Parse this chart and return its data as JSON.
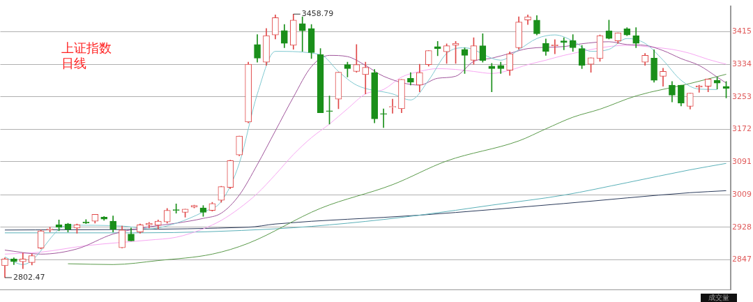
{
  "chart_data": {
    "type": "candlestick",
    "title": "上证指数",
    "subtitle": "日线",
    "categories": [
      null,
      null,
      null,
      null,
      null,
      null,
      null,
      null,
      null,
      null,
      null,
      null,
      null,
      null,
      null,
      null,
      null,
      null,
      null,
      null,
      null,
      null,
      null,
      null,
      null,
      null,
      null,
      null,
      null,
      null,
      null,
      null,
      null,
      null,
      null,
      null,
      null,
      null,
      null,
      null,
      null,
      null,
      null,
      null,
      null,
      null,
      null,
      null,
      null,
      null,
      null,
      null,
      null,
      null,
      null,
      null,
      null,
      null,
      null,
      null,
      null,
      null,
      null,
      null,
      null,
      null,
      null,
      null,
      null,
      null,
      null,
      null,
      null,
      null,
      null,
      null,
      null,
      null,
      null,
      null,
      null
    ],
    "ohlc": [
      [
        2832,
        2852,
        2802.47,
        2849
      ],
      [
        2849,
        2852,
        2835,
        2842
      ],
      [
        2842,
        2864,
        2825,
        2849
      ],
      [
        2840,
        2862,
        2834,
        2857
      ],
      [
        2876,
        2921,
        2874,
        2919
      ],
      [
        2921,
        2928,
        2916,
        2924
      ],
      [
        2934,
        2946,
        2919,
        2928
      ],
      [
        2936,
        2938,
        2916,
        2923
      ],
      [
        2926,
        2936,
        2913,
        2934
      ],
      [
        2941,
        2947,
        2937,
        2938
      ],
      [
        2943,
        2960,
        2938,
        2960
      ],
      [
        2953,
        2955,
        2945,
        2948
      ],
      [
        2943,
        2956,
        2916,
        2923
      ],
      [
        2877,
        2931,
        2876,
        2921
      ],
      [
        2911,
        2926,
        2894,
        2894
      ],
      [
        2916,
        2936,
        2913,
        2934
      ],
      [
        2934,
        2940,
        2926,
        2938
      ],
      [
        2933,
        2946,
        2924,
        2943
      ],
      [
        2941,
        2975,
        2938,
        2970
      ],
      [
        2971,
        2986,
        2963,
        2970
      ],
      [
        2965,
        2973,
        2953,
        2973
      ],
      [
        2978,
        2983,
        2976,
        2982
      ],
      [
        2976,
        2982,
        2955,
        2965
      ],
      [
        2970,
        2990,
        2968,
        2987
      ],
      [
        2995,
        3030,
        2990,
        3029
      ],
      [
        3027,
        3095,
        3024,
        3094
      ],
      [
        3108,
        3155,
        3106,
        3155
      ],
      [
        3190,
        3339,
        3188,
        3334
      ],
      [
        3383,
        3408,
        3339,
        3349
      ],
      [
        3339,
        3423,
        3331,
        3405
      ],
      [
        3407,
        3457,
        3397,
        3450
      ],
      [
        3418,
        3433,
        3375,
        3386
      ],
      [
        3381,
        3458.79,
        3371,
        3444
      ],
      [
        3435,
        3452,
        3366,
        3417
      ],
      [
        3423,
        3433,
        3348,
        3363
      ],
      [
        3358,
        3373,
        3213,
        3213
      ],
      [
        3218,
        3255,
        3185,
        3216
      ],
      [
        3247,
        3314,
        3223,
        3314
      ],
      [
        3333,
        3339,
        3302,
        3323
      ],
      [
        3316,
        3383,
        3314,
        3333
      ],
      [
        3308,
        3339,
        3260,
        3326
      ],
      [
        3313,
        3321,
        3188,
        3198
      ],
      [
        3211,
        3223,
        3176,
        3209
      ],
      [
        3227,
        3247,
        3212,
        3229
      ],
      [
        3223,
        3296,
        3213,
        3296
      ],
      [
        3299,
        3313,
        3282,
        3289
      ],
      [
        3282,
        3334,
        3265,
        3313
      ],
      [
        3333,
        3368,
        3329,
        3368
      ],
      [
        3378,
        3391,
        3355,
        3373
      ],
      [
        3365,
        3385,
        3336,
        3380
      ],
      [
        3381,
        3391,
        3336,
        3386
      ],
      [
        3371,
        3375,
        3311,
        3356
      ],
      [
        3344,
        3400,
        3334,
        3380
      ],
      [
        3380,
        3410,
        3339,
        3343
      ],
      [
        3329,
        3336,
        3265,
        3323
      ],
      [
        3331,
        3339,
        3311,
        3323
      ],
      [
        3319,
        3365,
        3306,
        3360
      ],
      [
        3375,
        3452,
        3371,
        3439
      ],
      [
        3444,
        3457,
        3433,
        3452
      ],
      [
        3444,
        3455,
        3407,
        3410
      ],
      [
        3386,
        3397,
        3356,
        3366
      ],
      [
        3380,
        3395,
        3360,
        3382
      ],
      [
        3392,
        3400,
        3370,
        3388
      ],
      [
        3393,
        3408,
        3366,
        3375
      ],
      [
        3373,
        3381,
        3323,
        3331
      ],
      [
        3334,
        3350,
        3314,
        3350
      ],
      [
        3348,
        3407,
        3341,
        3405
      ],
      [
        3417,
        3444,
        3397,
        3398
      ],
      [
        3392,
        3412,
        3386,
        3412
      ],
      [
        3422,
        3425,
        3405,
        3407
      ],
      [
        3405,
        3425,
        3375,
        3386
      ],
      [
        3339,
        3361,
        3331,
        3356
      ],
      [
        3349,
        3370,
        3289,
        3294
      ],
      [
        3304,
        3324,
        3279,
        3316
      ],
      [
        3282,
        3291,
        3240,
        3257
      ],
      [
        3282,
        3282,
        3230,
        3237
      ],
      [
        3229,
        3262,
        3222,
        3262
      ],
      [
        3277,
        3282,
        3264,
        3280
      ],
      [
        3279,
        3297,
        3265,
        3297
      ],
      [
        3294,
        3302,
        3272,
        3287
      ],
      [
        3279,
        3291,
        3250,
        3274
      ]
    ],
    "series": [
      {
        "type": "line",
        "color": "#7ec8d0",
        "values": [
          2854,
          null,
          2835,
          null,
          null,
          null,
          null,
          2933,
          null,
          null,
          null,
          null,
          null,
          2931,
          null,
          null,
          2924,
          null,
          null,
          2938,
          null,
          null,
          2966,
          null,
          2992,
          null,
          3087,
          null,
          3260,
          null,
          3366,
          null,
          null,
          null,
          null,
          3358,
          null,
          3316,
          null,
          3282,
          null,
          null,
          null,
          3260,
          null,
          3245,
          null,
          3294,
          null,
          3361,
          null,
          3375,
          null,
          null,
          null,
          3344,
          null,
          3370,
          null,
          3398,
          null,
          3407,
          null,
          3392,
          null,
          3366,
          null,
          3371,
          null,
          3398,
          null,
          3386,
          null,
          3344,
          null,
          3294,
          null,
          3272,
          null,
          3271,
          null
        ]
      },
      {
        "type": "line",
        "color": "#a0569c",
        "values": [
          2871,
          null,
          null,
          null,
          2861,
          null,
          null,
          null,
          2874,
          null,
          null,
          null,
          2911,
          null,
          null,
          null,
          2929,
          null,
          null,
          2938,
          null,
          null,
          2950,
          null,
          2963,
          null,
          3008,
          null,
          3084,
          null,
          3168,
          null,
          3252,
          null,
          3328,
          null,
          3356,
          null,
          3353,
          null,
          3331,
          null,
          3304,
          null,
          null,
          null,
          3282,
          null,
          3299,
          null,
          3304,
          null,
          3341,
          null,
          3349,
          null,
          3361,
          null,
          3373,
          null,
          null,
          null,
          3378,
          null,
          3385,
          null,
          null,
          3390,
          null,
          3383,
          null,
          3381,
          null,
          3368,
          null,
          3348,
          null,
          3331,
          null,
          3302,
          3287
        ]
      },
      {
        "type": "line",
        "color": "#f7a6f2",
        "values": [
          2861,
          null,
          null,
          null,
          2866,
          null,
          null,
          null,
          null,
          2882,
          null,
          null,
          null,
          null,
          null,
          null,
          2896,
          null,
          null,
          2903,
          null,
          null,
          2924,
          null,
          2945,
          null,
          2975,
          null,
          3012,
          null,
          3059,
          null,
          3109,
          null,
          3151,
          null,
          3185,
          null,
          3223,
          null,
          3260,
          null,
          3271,
          null,
          3302,
          null,
          3316,
          null,
          3323,
          null,
          3321,
          null,
          3316,
          null,
          3311,
          null,
          3319,
          null,
          3333,
          null,
          3344,
          null,
          3356,
          null,
          null,
          null,
          null,
          null,
          null,
          3381,
          null,
          null,
          3376,
          null,
          3371,
          null,
          3361,
          null,
          3346,
          null,
          3334
        ]
      },
      {
        "type": "line",
        "color": "#5a9a4a",
        "values": [
          null,
          null,
          null,
          null,
          null,
          null,
          null,
          2837,
          null,
          null,
          null,
          null,
          2835,
          null,
          null,
          null,
          null,
          2845,
          null,
          null,
          null,
          null,
          null,
          2861,
          null,
          null,
          null,
          2888,
          null,
          null,
          null,
          null,
          null,
          null,
          null,
          2975,
          null,
          null,
          null,
          null,
          null,
          null,
          null,
          3034,
          null,
          null,
          null,
          null,
          null,
          3093,
          null,
          null,
          null,
          null,
          null,
          null,
          null,
          3143,
          null,
          null,
          3173,
          null,
          null,
          3202,
          null,
          null,
          3222,
          null,
          null,
          null,
          3255,
          null,
          null,
          null,
          null,
          null,
          3286,
          null,
          null,
          null,
          3309
        ]
      },
      {
        "type": "line",
        "color": "#5ab0b8",
        "values": [
          2914,
          null,
          null,
          null,
          null,
          null,
          null,
          null,
          null,
          null,
          null,
          null,
          null,
          null,
          null,
          2914,
          null,
          null,
          null,
          null,
          null,
          null,
          null,
          null,
          null,
          null,
          null,
          null,
          null,
          null,
          2924,
          null,
          null,
          null,
          null,
          null,
          null,
          null,
          2938,
          null,
          null,
          null,
          null,
          null,
          null,
          null,
          2958,
          null,
          null,
          null,
          null,
          null,
          null,
          null,
          2983,
          null,
          null,
          null,
          null,
          null,
          null,
          null,
          3008,
          null,
          null,
          null,
          null,
          null,
          null,
          3039,
          null,
          null,
          null,
          null,
          null,
          null,
          3071,
          null,
          null,
          null,
          3087
        ]
      },
      {
        "type": "line",
        "color": "#2a3a5a",
        "values": [
          2921,
          null,
          null,
          null,
          null,
          null,
          null,
          null,
          null,
          null,
          null,
          null,
          null,
          null,
          null,
          null,
          null,
          null,
          null,
          null,
          null,
          null,
          null,
          null,
          null,
          null,
          null,
          2928,
          null,
          null,
          2936,
          null,
          null,
          null,
          null,
          null,
          null,
          null,
          null,
          null,
          null,
          null,
          null,
          null,
          null,
          null,
          2958,
          null,
          null,
          null,
          null,
          null,
          null,
          null,
          null,
          null,
          null,
          null,
          null,
          null,
          null,
          null,
          2987,
          null,
          null,
          null,
          null,
          null,
          null,
          null,
          null,
          null,
          null,
          null,
          null,
          null,
          3014,
          null,
          null,
          null,
          3019
        ]
      }
    ],
    "ylim": [
      2773,
      3479
    ],
    "yticks": [
      3415,
      3334,
      3253,
      3172,
      3091,
      3009,
      2928,
      2847
    ],
    "grid": "y",
    "legend": false,
    "annotations": [
      "3458.79",
      "2802.47",
      "成交量"
    ]
  }
}
